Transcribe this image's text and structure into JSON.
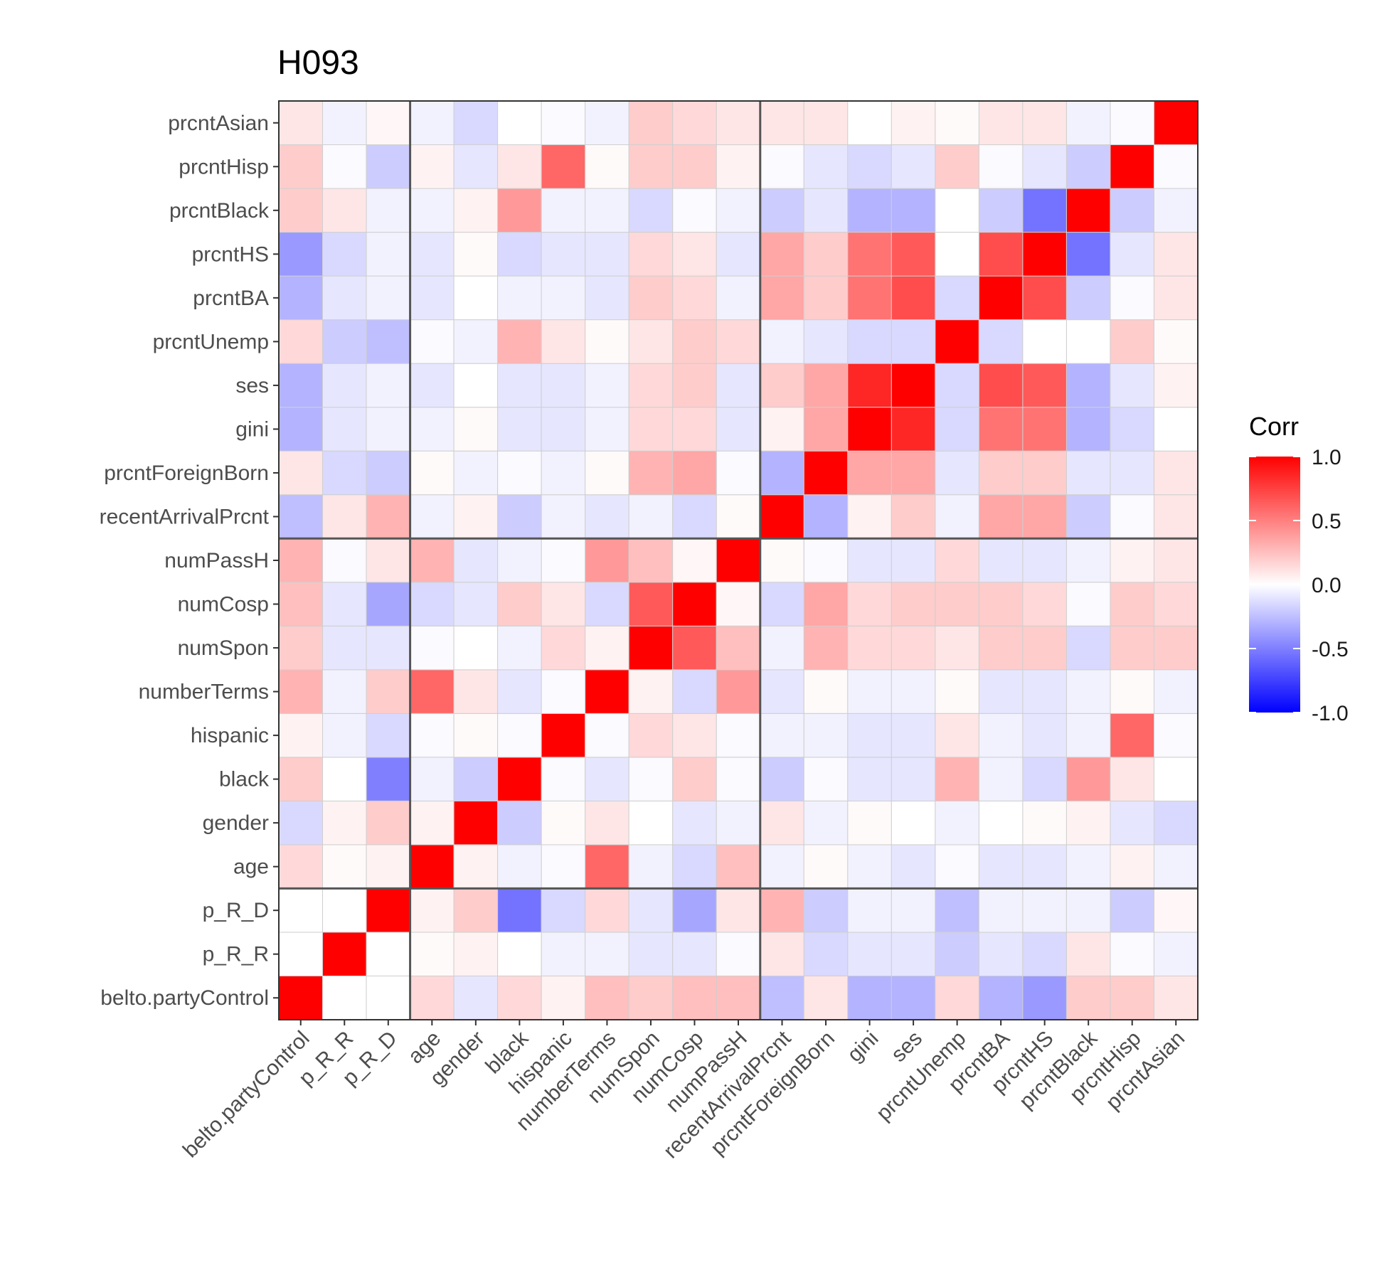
{
  "chart_data": {
    "type": "heatmap",
    "title": "H093",
    "xlabel": "",
    "ylabel": "",
    "variables": [
      "belto.partyControl",
      "p_R_R",
      "p_R_D",
      "age",
      "gender",
      "black",
      "hispanic",
      "numberTerms",
      "numSpon",
      "numCosp",
      "numPassH",
      "recentArrivalPrcnt",
      "prcntForeignBorn",
      "gini",
      "ses",
      "prcntUnemp",
      "prcntBA",
      "prcntHS",
      "prcntBlack",
      "prcntHisp",
      "prcntAsian"
    ],
    "group_boundaries_after_index": [
      2,
      10
    ],
    "matrix": [
      [
        1.0,
        0.0,
        0.0,
        0.15,
        -0.1,
        0.15,
        0.05,
        0.25,
        0.2,
        0.25,
        0.25,
        -0.25,
        0.1,
        -0.3,
        -0.3,
        0.15,
        -0.3,
        -0.4,
        0.2,
        0.2,
        0.1
      ],
      [
        0.0,
        1.0,
        0.0,
        0.02,
        0.05,
        0.0,
        -0.05,
        -0.05,
        -0.1,
        -0.1,
        -0.02,
        0.1,
        -0.15,
        -0.1,
        -0.1,
        -0.2,
        -0.1,
        -0.15,
        0.1,
        -0.02,
        -0.05
      ],
      [
        0.0,
        0.0,
        1.0,
        0.05,
        0.2,
        -0.55,
        -0.15,
        0.15,
        -0.1,
        -0.35,
        0.1,
        0.3,
        -0.2,
        -0.05,
        -0.05,
        -0.25,
        -0.05,
        -0.05,
        -0.05,
        -0.2,
        0.03
      ],
      [
        0.15,
        0.02,
        0.05,
        1.0,
        0.05,
        -0.05,
        -0.02,
        0.6,
        -0.05,
        -0.15,
        0.25,
        -0.05,
        0.02,
        -0.05,
        -0.1,
        -0.02,
        -0.1,
        -0.1,
        -0.05,
        0.05,
        -0.05
      ],
      [
        -0.15,
        0.05,
        0.2,
        0.05,
        1.0,
        -0.2,
        0.02,
        0.1,
        0.0,
        -0.1,
        -0.05,
        0.1,
        -0.05,
        0.02,
        0.0,
        -0.05,
        0.0,
        0.02,
        0.05,
        -0.1,
        -0.15
      ],
      [
        0.2,
        0.0,
        -0.5,
        -0.05,
        -0.2,
        1.0,
        -0.02,
        -0.1,
        -0.02,
        0.2,
        -0.02,
        -0.2,
        -0.02,
        -0.1,
        -0.1,
        0.3,
        -0.05,
        -0.15,
        0.4,
        0.1,
        0.0
      ],
      [
        0.05,
        -0.05,
        -0.15,
        -0.02,
        0.02,
        -0.02,
        1.0,
        -0.02,
        0.15,
        0.1,
        -0.02,
        -0.05,
        -0.05,
        -0.1,
        -0.1,
        0.1,
        -0.05,
        -0.1,
        -0.05,
        0.6,
        -0.02
      ],
      [
        0.3,
        -0.05,
        0.2,
        0.6,
        0.1,
        -0.1,
        -0.02,
        1.0,
        0.05,
        -0.15,
        0.4,
        -0.1,
        0.02,
        -0.05,
        -0.05,
        0.02,
        -0.1,
        -0.1,
        -0.05,
        0.02,
        -0.05
      ],
      [
        0.2,
        -0.1,
        -0.1,
        -0.02,
        0.0,
        -0.05,
        0.15,
        0.05,
        1.0,
        0.65,
        0.25,
        -0.05,
        0.3,
        0.15,
        0.15,
        0.1,
        0.2,
        0.2,
        -0.15,
        0.2,
        0.2
      ],
      [
        0.25,
        -0.1,
        -0.35,
        -0.15,
        -0.1,
        0.2,
        0.1,
        -0.15,
        0.65,
        1.0,
        0.03,
        -0.15,
        0.35,
        0.15,
        0.2,
        0.2,
        0.2,
        0.15,
        -0.02,
        0.2,
        0.15
      ],
      [
        0.3,
        -0.02,
        0.1,
        0.3,
        -0.1,
        -0.05,
        -0.02,
        0.4,
        0.25,
        0.03,
        1.0,
        0.02,
        -0.02,
        -0.1,
        -0.1,
        0.15,
        -0.1,
        -0.1,
        -0.05,
        0.05,
        0.1
      ],
      [
        -0.25,
        0.1,
        0.3,
        -0.05,
        0.05,
        -0.2,
        -0.05,
        -0.1,
        -0.05,
        -0.15,
        0.02,
        1.0,
        -0.3,
        0.05,
        0.2,
        -0.05,
        0.35,
        0.35,
        -0.2,
        -0.02,
        0.1
      ],
      [
        0.1,
        -0.15,
        -0.2,
        0.02,
        -0.05,
        -0.02,
        -0.05,
        0.02,
        0.3,
        0.35,
        -0.02,
        -0.3,
        1.0,
        0.35,
        0.35,
        -0.1,
        0.2,
        0.2,
        -0.1,
        -0.1,
        0.1
      ],
      [
        -0.3,
        -0.1,
        -0.05,
        -0.05,
        0.02,
        -0.1,
        -0.1,
        -0.05,
        0.15,
        0.15,
        -0.1,
        0.05,
        0.35,
        1.0,
        0.85,
        -0.15,
        0.55,
        0.55,
        -0.3,
        -0.15,
        0.0
      ],
      [
        -0.3,
        -0.1,
        -0.05,
        -0.1,
        0.0,
        -0.1,
        -0.1,
        -0.05,
        0.15,
        0.2,
        -0.1,
        0.2,
        0.35,
        0.85,
        1.0,
        -0.15,
        0.7,
        0.65,
        -0.3,
        -0.1,
        0.05
      ],
      [
        0.15,
        -0.2,
        -0.25,
        -0.02,
        -0.05,
        0.3,
        0.1,
        0.02,
        0.1,
        0.2,
        0.15,
        -0.05,
        -0.1,
        -0.15,
        -0.15,
        1.0,
        -0.15,
        0.0,
        0.0,
        0.2,
        0.02
      ],
      [
        -0.3,
        -0.1,
        -0.05,
        -0.1,
        0.0,
        -0.05,
        -0.05,
        -0.1,
        0.2,
        0.15,
        -0.05,
        0.35,
        0.2,
        0.55,
        0.7,
        -0.15,
        1.0,
        0.7,
        -0.2,
        -0.02,
        0.1
      ],
      [
        -0.4,
        -0.15,
        -0.05,
        -0.1,
        0.02,
        -0.15,
        -0.1,
        -0.1,
        0.15,
        0.1,
        -0.1,
        0.35,
        0.2,
        0.55,
        0.65,
        0.0,
        0.7,
        1.0,
        -0.55,
        -0.1,
        0.1
      ],
      [
        0.2,
        0.1,
        -0.05,
        -0.05,
        0.05,
        0.4,
        -0.05,
        -0.05,
        -0.15,
        -0.02,
        -0.05,
        -0.2,
        -0.1,
        -0.3,
        -0.3,
        0.0,
        -0.2,
        -0.55,
        1.0,
        -0.2,
        -0.05
      ],
      [
        0.2,
        -0.02,
        -0.2,
        0.05,
        -0.1,
        0.1,
        0.6,
        0.02,
        0.2,
        0.2,
        0.05,
        -0.02,
        -0.1,
        -0.15,
        -0.1,
        0.2,
        -0.02,
        -0.1,
        -0.2,
        1.0,
        -0.02
      ],
      [
        0.1,
        -0.05,
        0.03,
        -0.05,
        -0.15,
        0.0,
        -0.02,
        -0.05,
        0.2,
        0.15,
        0.1,
        0.1,
        0.1,
        0.0,
        0.05,
        0.02,
        0.1,
        0.1,
        -0.05,
        -0.02,
        1.0
      ]
    ],
    "legend": {
      "title": "Corr",
      "range": [
        -1.0,
        1.0
      ],
      "ticks": [
        "1.0",
        "0.5",
        "0.0",
        "-0.5",
        "-1.0"
      ],
      "tick_values": [
        1.0,
        0.5,
        0.0,
        -0.5,
        -1.0
      ],
      "placement": "right",
      "low_color": "#0000ff",
      "mid_color": "#ffffff",
      "high_color": "#ff0000"
    }
  }
}
